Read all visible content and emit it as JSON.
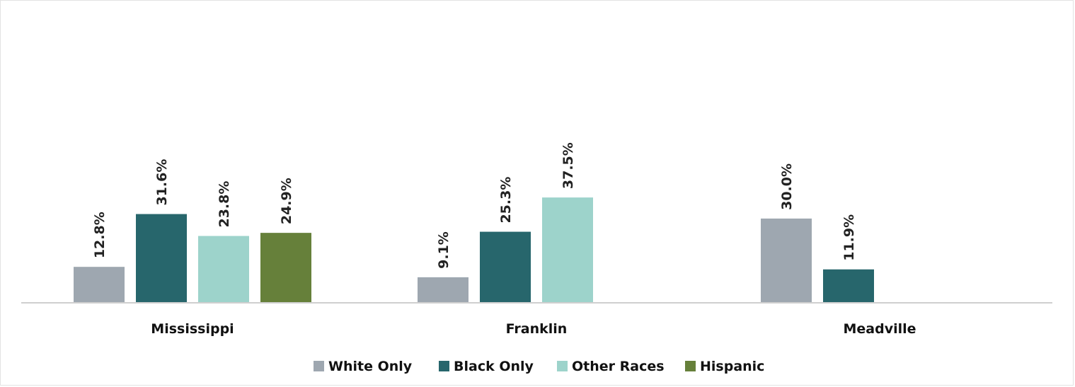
{
  "chart_data": {
    "type": "bar",
    "title": "",
    "xlabel": "",
    "ylabel": "",
    "categories": [
      "Mississippi",
      "Franklin",
      "Meadville"
    ],
    "series": [
      {
        "name": "White Only",
        "values": [
          12.8,
          9.1,
          30.0
        ],
        "labels": [
          "12.8%",
          "9.1%",
          "30.0%"
        ],
        "color": "#9ea7b0"
      },
      {
        "name": "Black Only",
        "values": [
          31.6,
          25.3,
          11.9
        ],
        "labels": [
          "31.6%",
          "25.3%",
          "11.9%"
        ],
        "color": "#27666c"
      },
      {
        "name": "Other Races",
        "values": [
          23.8,
          37.5,
          null
        ],
        "labels": [
          "23.8%",
          "37.5%",
          ""
        ],
        "color": "#9dd3cb"
      },
      {
        "name": "Hispanic",
        "values": [
          24.9,
          null,
          null
        ],
        "labels": [
          "24.9%",
          "",
          ""
        ],
        "color": "#66803a"
      }
    ],
    "ylim": [
      0,
      85
    ],
    "grid": false,
    "legend_position": "bottom",
    "axis_color": "#cfcfcf"
  }
}
